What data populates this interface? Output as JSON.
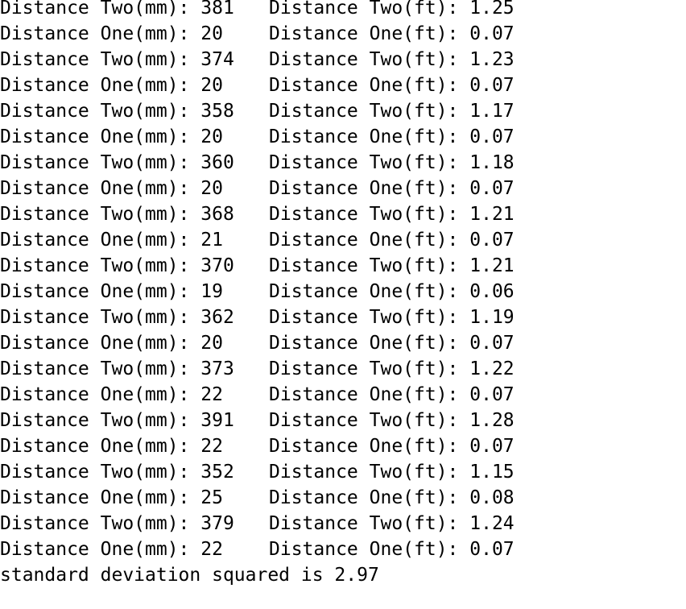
{
  "terminal": {
    "lines": [
      {
        "mm": "Distance Two(mm): 381",
        "ft": "Distance Two(ft): 1.25"
      },
      {
        "mm": "Distance One(mm): 20",
        "ft": "Distance One(ft): 0.07"
      },
      {
        "mm": "Distance Two(mm): 374",
        "ft": "Distance Two(ft): 1.23"
      },
      {
        "mm": "Distance One(mm): 20",
        "ft": "Distance One(ft): 0.07"
      },
      {
        "mm": "Distance Two(mm): 358",
        "ft": "Distance Two(ft): 1.17"
      },
      {
        "mm": "Distance One(mm): 20",
        "ft": "Distance One(ft): 0.07"
      },
      {
        "mm": "Distance Two(mm): 360",
        "ft": "Distance Two(ft): 1.18"
      },
      {
        "mm": "Distance One(mm): 20",
        "ft": "Distance One(ft): 0.07"
      },
      {
        "mm": "Distance Two(mm): 368",
        "ft": "Distance Two(ft): 1.21"
      },
      {
        "mm": "Distance One(mm): 21",
        "ft": "Distance One(ft): 0.07"
      },
      {
        "mm": "Distance Two(mm): 370",
        "ft": "Distance Two(ft): 1.21"
      },
      {
        "mm": "Distance One(mm): 19",
        "ft": "Distance One(ft): 0.06"
      },
      {
        "mm": "Distance Two(mm): 362",
        "ft": "Distance Two(ft): 1.19"
      },
      {
        "mm": "Distance One(mm): 20",
        "ft": "Distance One(ft): 0.07"
      },
      {
        "mm": "Distance Two(mm): 373",
        "ft": "Distance Two(ft): 1.22"
      },
      {
        "mm": "Distance One(mm): 22",
        "ft": "Distance One(ft): 0.07"
      },
      {
        "mm": "Distance Two(mm): 391",
        "ft": "Distance Two(ft): 1.28"
      },
      {
        "mm": "Distance One(mm): 22",
        "ft": "Distance One(ft): 0.07"
      },
      {
        "mm": "Distance Two(mm): 352",
        "ft": "Distance Two(ft): 1.15"
      },
      {
        "mm": "Distance One(mm): 25",
        "ft": "Distance One(ft): 0.08"
      },
      {
        "mm": "Distance Two(mm): 379",
        "ft": "Distance Two(ft): 1.24"
      },
      {
        "mm": "Distance One(mm): 22",
        "ft": "Distance One(ft): 0.07"
      }
    ],
    "footer": "standard deviation squared is 2.97"
  }
}
